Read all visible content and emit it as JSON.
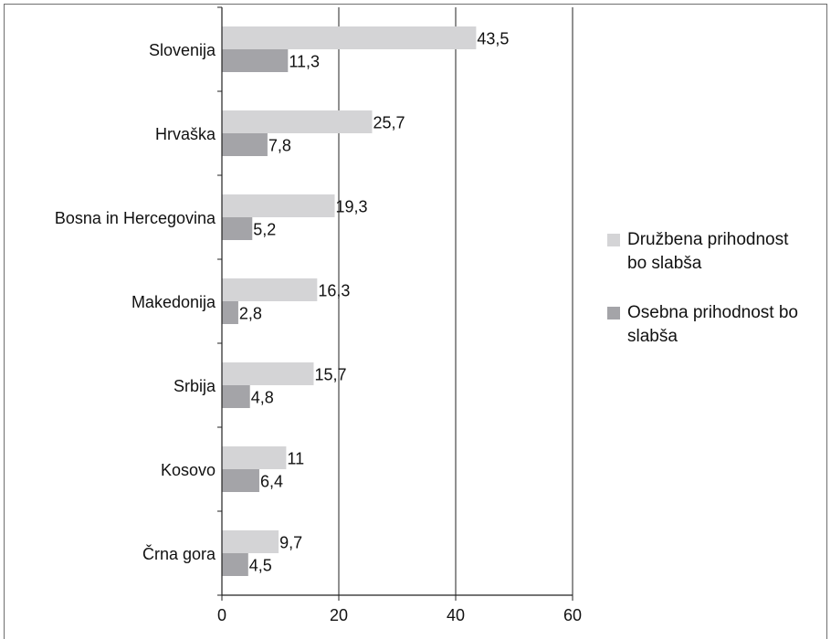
{
  "chart_data": {
    "type": "bar",
    "orientation": "horizontal",
    "categories": [
      "Slovenija",
      "Hrvaška",
      "Bosna in Hercegovina",
      "Makedonija",
      "Srbija",
      "Kosovo",
      "Črna gora"
    ],
    "series": [
      {
        "name": "Družbena prihodnost bo slabša",
        "values": [
          43.5,
          25.7,
          19.3,
          16.3,
          15.7,
          11,
          9.7
        ],
        "labels": [
          "43,5",
          "25,7",
          "19,3",
          "16,3",
          "15,7",
          "11",
          "9,7"
        ],
        "color": "#d4d4d6"
      },
      {
        "name": "Osebna prihodnost bo slabša",
        "values": [
          11.3,
          7.8,
          5.2,
          2.8,
          4.8,
          6.4,
          4.5
        ],
        "labels": [
          "11,3",
          "7,8",
          "5,2",
          "2,8",
          "4,8",
          "6,4",
          "4,5"
        ],
        "color": "#a4a4a8"
      }
    ],
    "xlim": [
      0,
      60
    ],
    "xticks": [
      0,
      20,
      40,
      60
    ],
    "grid": true,
    "legend_position": "right"
  }
}
